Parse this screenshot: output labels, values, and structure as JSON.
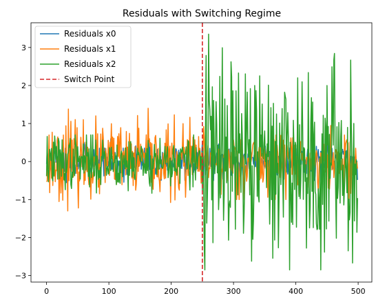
{
  "chart_data": {
    "type": "line",
    "title": "Residuals with Switching Regime",
    "xlabel": "",
    "ylabel": "",
    "xlim": [
      -25,
      522
    ],
    "ylim": [
      -3.17,
      3.65
    ],
    "x_ticks": [
      0,
      100,
      200,
      300,
      400,
      500
    ],
    "y_ticks": [
      -3,
      -2,
      -1,
      0,
      1,
      2,
      3
    ],
    "grid": false,
    "legend": "top-left",
    "n_points": 500,
    "switch_point": 250,
    "series": [
      {
        "name": "Residuals x0",
        "color": "#1f77b4",
        "regime1_range": [
          -0.6,
          0.6
        ],
        "regime2_range": [
          -0.5,
          0.5
        ],
        "regime2_typical": "about -0.3 to 0.4, with spikes near x=290 and x=410"
      },
      {
        "name": "Residuals x1",
        "color": "#ff7f0e",
        "regime1_range": [
          -1.3,
          1.4
        ],
        "regime2_range": [
          -1.0,
          1.0
        ],
        "regime1_peak": {
          "x": 35,
          "y": 1.38
        }
      },
      {
        "name": "Residuals x2",
        "color": "#2ca02c",
        "regime1_range": [
          -1.0,
          0.7
        ],
        "regime2_range": [
          -2.85,
          3.35
        ],
        "regime2_peak_max": {
          "x": 260,
          "y": 3.35
        },
        "regime2_peak_min": {
          "x": 440,
          "y": -2.85
        }
      },
      {
        "name": "Switch Point",
        "color": "#d62728",
        "style": "dashed",
        "x": 250
      }
    ]
  }
}
